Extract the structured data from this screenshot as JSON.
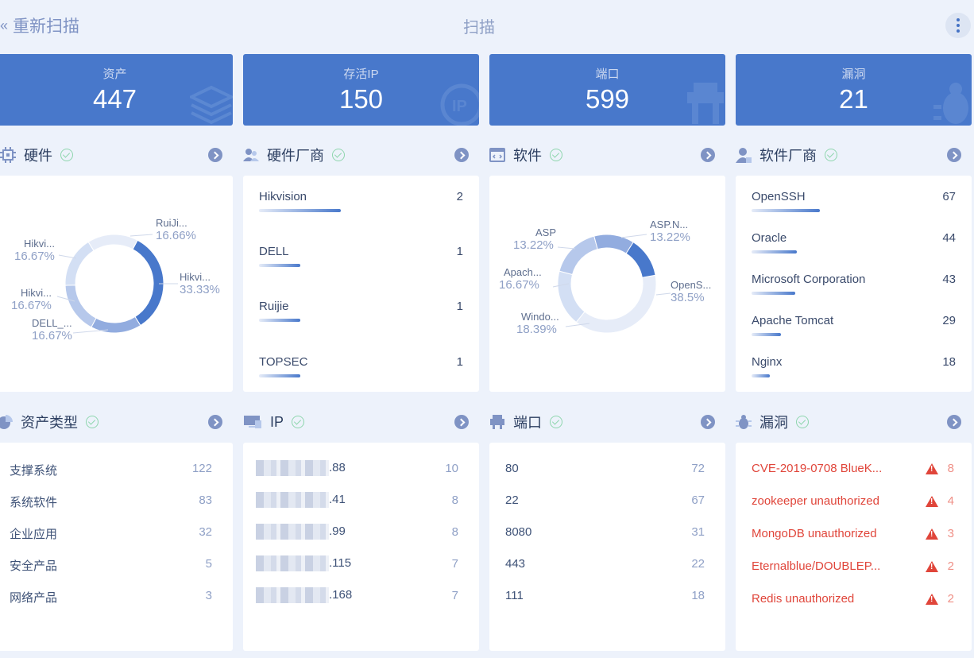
{
  "header": {
    "back_label": "重新扫描",
    "title": "扫描"
  },
  "stats": [
    {
      "label": "资产",
      "value": "447",
      "icon": "layers-icon"
    },
    {
      "label": "存活IP",
      "value": "150",
      "icon": "ip-icon"
    },
    {
      "label": "端口",
      "value": "599",
      "icon": "port-icon"
    },
    {
      "label": "漏洞",
      "value": "21",
      "icon": "bug-icon"
    }
  ],
  "hardware": {
    "title": "硬件",
    "chart_data": {
      "type": "pie",
      "labels": [
        "Hikvi...",
        "DELL_...",
        "Hikvi...",
        "Hikvi...",
        "RuiJi..."
      ],
      "values": [
        33.33,
        16.67,
        16.67,
        16.67,
        16.66
      ],
      "value_labels": [
        "33.33%",
        "16.67%",
        "16.67%",
        "16.67%",
        "16.66%"
      ],
      "colors": [
        "#4878cb",
        "#92acdf",
        "#b6c8eb",
        "#d3dff4",
        "#e6ecf8"
      ]
    }
  },
  "hw_vendors": {
    "title": "硬件厂商",
    "items": [
      {
        "name": "Hikvision",
        "count": "2",
        "share": 1.0
      },
      {
        "name": "DELL",
        "count": "1",
        "share": 0.5
      },
      {
        "name": "Ruijie",
        "count": "1",
        "share": 0.5
      },
      {
        "name": "TOPSEC",
        "count": "1",
        "share": 0.5
      }
    ]
  },
  "software": {
    "title": "软件",
    "chart_data": {
      "type": "pie",
      "labels": [
        "OpenS...",
        "Windo...",
        "Apach...",
        "ASP",
        "ASP.N..."
      ],
      "values": [
        38.5,
        18.39,
        16.67,
        13.22,
        13.22
      ],
      "value_labels": [
        "38.5%",
        "18.39%",
        "16.67%",
        "13.22%",
        "13.22%"
      ],
      "colors": [
        "#e6ecf8",
        "#d3dff4",
        "#b6c8eb",
        "#92acdf",
        "#4878cb"
      ]
    }
  },
  "sw_vendors": {
    "title": "软件厂商",
    "items": [
      {
        "name": "OpenSSH",
        "count": "67",
        "share": 1.0
      },
      {
        "name": "Oracle",
        "count": "44",
        "share": 0.66
      },
      {
        "name": "Microsoft Corporation",
        "count": "43",
        "share": 0.64
      },
      {
        "name": "Apache Tomcat",
        "count": "29",
        "share": 0.43
      },
      {
        "name": "Nginx",
        "count": "18",
        "share": 0.27
      }
    ]
  },
  "asset_types": {
    "title": "资产类型",
    "items": [
      {
        "name": "支撑系统",
        "count": "122"
      },
      {
        "name": "系统软件",
        "count": "83"
      },
      {
        "name": "企业应用",
        "count": "32"
      },
      {
        "name": "安全产品",
        "count": "5"
      },
      {
        "name": "网络产品",
        "count": "3"
      }
    ]
  },
  "ip": {
    "title": "IP",
    "items": [
      {
        "name": ".88",
        "count": "10"
      },
      {
        "name": ".41",
        "count": "8"
      },
      {
        "name": ".99",
        "count": "8"
      },
      {
        "name": ".115",
        "count": "7"
      },
      {
        "name": ".168",
        "count": "7"
      }
    ]
  },
  "ports": {
    "title": "端口",
    "items": [
      {
        "name": "80",
        "count": "72"
      },
      {
        "name": "22",
        "count": "67"
      },
      {
        "name": "8080",
        "count": "31"
      },
      {
        "name": "443",
        "count": "22"
      },
      {
        "name": "111",
        "count": "18"
      }
    ]
  },
  "vulns": {
    "title": "漏洞",
    "items": [
      {
        "name": "CVE-2019-0708 BlueK...",
        "count": "8"
      },
      {
        "name": "zookeeper unauthorized",
        "count": "4"
      },
      {
        "name": "MongoDB unauthorized",
        "count": "3"
      },
      {
        "name": "Eternalblue/DOUBLEP...",
        "count": "2"
      },
      {
        "name": "Redis unauthorized",
        "count": "2"
      }
    ]
  },
  "colors": {
    "accent": "#4878cb",
    "danger": "#e0453a",
    "ok": "#8fd6ae",
    "bg": "#edf2fb"
  }
}
